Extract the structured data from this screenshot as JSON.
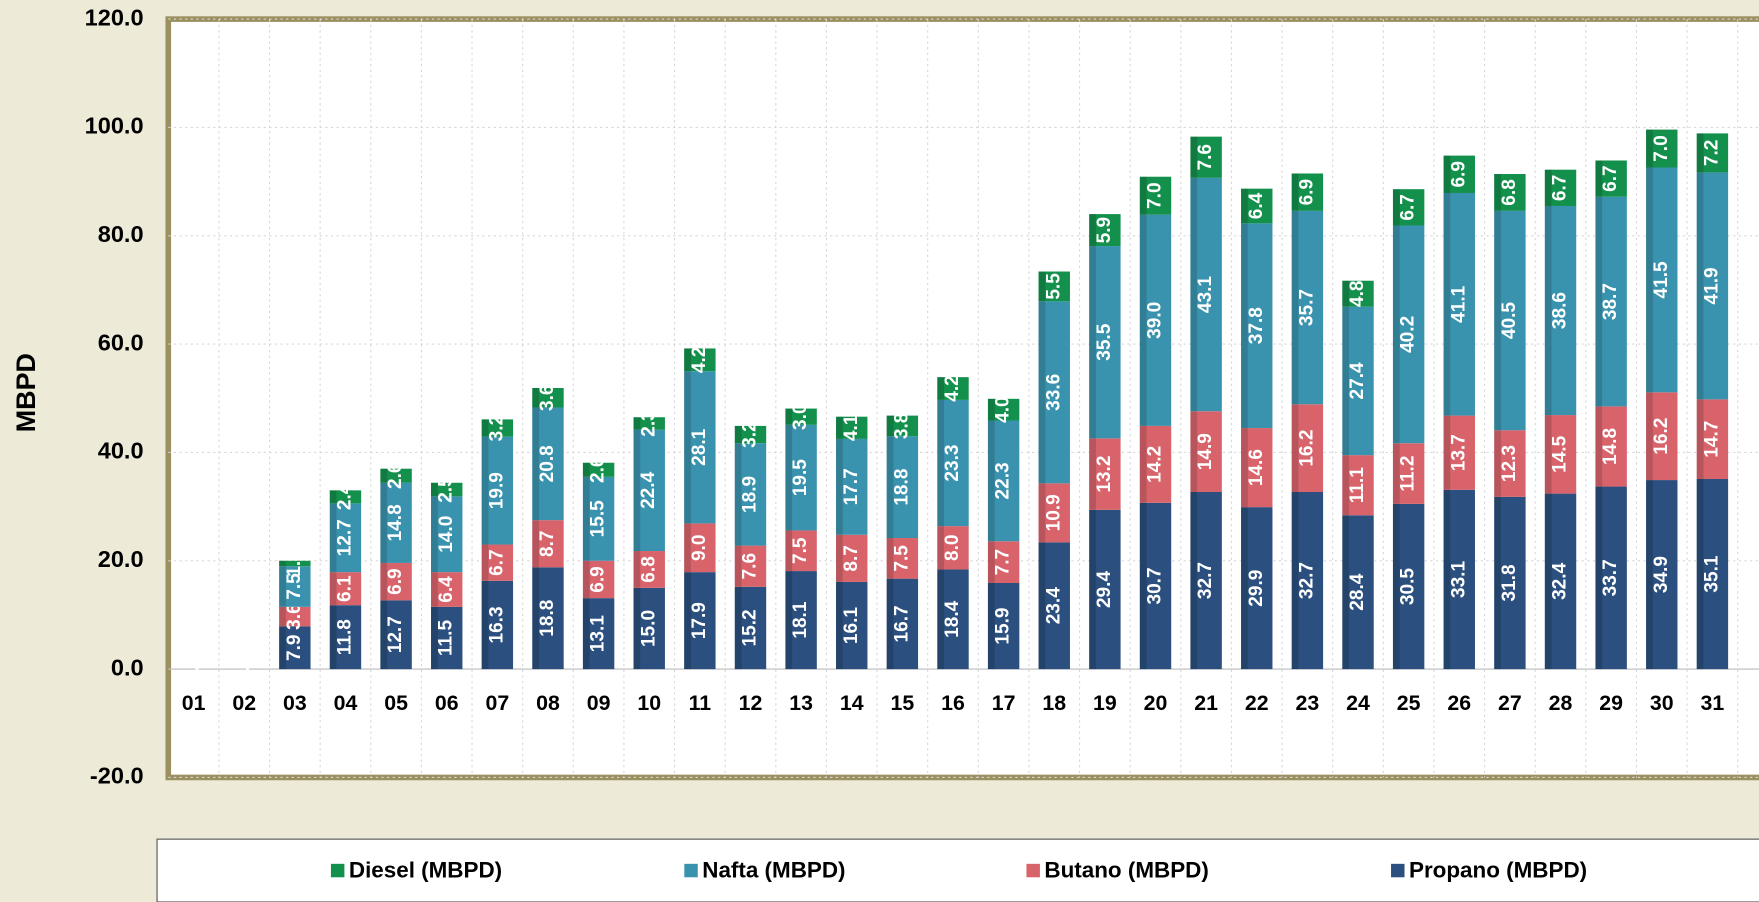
{
  "chart_data": {
    "type": "bar",
    "stacked": true,
    "y_label": "MBPD",
    "categories": [
      "01",
      "02",
      "03",
      "04",
      "05",
      "06",
      "07",
      "08",
      "09",
      "10",
      "11",
      "12",
      "13",
      "14",
      "15",
      "16",
      "17",
      "18",
      "19",
      "20",
      "21",
      "22",
      "23",
      "24",
      "25",
      "26",
      "27",
      "28",
      "29",
      "30",
      "31"
    ],
    "series": [
      {
        "name": "Propano (MBPD)",
        "color": "#2b4f7e",
        "values": [
          0,
          0,
          7.9,
          11.8,
          12.7,
          11.5,
          16.3,
          18.8,
          13.1,
          15.0,
          17.9,
          15.2,
          18.1,
          16.1,
          16.7,
          18.4,
          15.9,
          23.4,
          29.4,
          30.7,
          32.7,
          29.9,
          32.7,
          28.4,
          30.5,
          33.1,
          31.8,
          32.4,
          33.7,
          34.9,
          35.1
        ],
        "value_labels": [
          "0.0",
          "0.0",
          "7.9",
          "11.8",
          "12.7",
          "11.5",
          "16.3",
          "18.8",
          "13.1",
          "15.0",
          "17.9",
          "15.2",
          "18.1",
          "16.1",
          "16.7",
          "18.4",
          "15.9",
          "23.4",
          "29.4",
          "30.7",
          "32.7",
          "29.9",
          "32.7",
          "28.4",
          "30.5",
          "33.1",
          "31.8",
          "32.4",
          "33.7",
          "34.9",
          "35.1"
        ]
      },
      {
        "name": "Butano (MBPD)",
        "color": "#d9636b",
        "values": [
          0,
          0,
          3.6,
          6.1,
          6.9,
          6.4,
          6.7,
          8.7,
          6.9,
          6.8,
          9.0,
          7.6,
          7.5,
          8.7,
          7.5,
          8.0,
          7.7,
          10.9,
          13.2,
          14.2,
          14.9,
          14.6,
          16.2,
          11.1,
          11.2,
          13.7,
          12.3,
          14.5,
          14.8,
          16.2,
          14.7
        ],
        "value_labels": [
          "0.0",
          "0.0",
          "3.6",
          "6.1",
          "6.9",
          "6.4",
          "6.7",
          "8.7",
          "6.9",
          "6.8",
          "9.0",
          "7.6",
          "7.5",
          "8.7",
          "7.5",
          "8.0",
          "7.7",
          "10.9",
          "13.2",
          "14.2",
          "14.9",
          "14.6",
          "16.2",
          "11.1",
          "11.2",
          "13.7",
          "12.3",
          "14.5",
          "14.8",
          "16.2",
          "14.7"
        ]
      },
      {
        "name": "Nafta (MBPD)",
        "color": "#3a93ae",
        "values": [
          0,
          0,
          7.5,
          12.7,
          14.8,
          14.0,
          19.9,
          20.8,
          15.5,
          22.4,
          28.1,
          18.9,
          19.5,
          17.7,
          18.8,
          23.3,
          22.3,
          33.6,
          35.5,
          39.0,
          43.1,
          37.8,
          35.7,
          27.4,
          40.2,
          41.1,
          40.5,
          38.6,
          38.7,
          41.5,
          41.9
        ],
        "value_labels": [
          "0.0",
          "0.0",
          "7.5",
          "12.7",
          "14.8",
          "14.0",
          "19.9",
          "20.8",
          "15.5",
          "22.4",
          "28.1",
          "18.9",
          "19.5",
          "17.7",
          "18.8",
          "23.3",
          "22.3",
          "33.6",
          "35.5",
          "39.0",
          "43.1",
          "37.8",
          "35.7",
          "27.4",
          "40.2",
          "41.1",
          "40.5",
          "38.6",
          "38.7",
          "41.5",
          "41.9"
        ]
      },
      {
        "name": "Diesel (MBPD)",
        "color": "#13904c",
        "values": [
          0,
          0,
          1.0,
          2.4,
          2.6,
          2.5,
          3.2,
          3.6,
          2.6,
          2.3,
          4.2,
          3.2,
          3.0,
          4.1,
          3.8,
          4.2,
          4.0,
          5.5,
          5.9,
          7.0,
          7.6,
          6.4,
          6.9,
          4.8,
          6.7,
          6.9,
          6.8,
          6.7,
          6.7,
          7.0,
          7.2
        ],
        "value_labels": [
          "0.0",
          "0.0",
          "1.0",
          "2.4",
          "2.6",
          "2.5",
          "3.2",
          "3.6",
          "2.6",
          "2.3",
          "4.2",
          "3.2",
          "3.0",
          "4.1",
          "3.8",
          "4.2",
          "4.0",
          "5.5",
          "5.9",
          "7.0",
          "7.6",
          "6.4",
          "6.9",
          "4.8",
          "6.7",
          "6.9",
          "6.8",
          "6.7",
          "6.7",
          "7.0",
          "7.2"
        ]
      }
    ],
    "ylim": [
      -20,
      120
    ],
    "yticks": [
      {
        "value": -20,
        "label": "-20.0"
      },
      {
        "value": 0,
        "label": "0.0"
      },
      {
        "value": 20,
        "label": "20.0"
      },
      {
        "value": 40,
        "label": "40.0"
      },
      {
        "value": 60,
        "label": "60.0"
      },
      {
        "value": 80,
        "label": "80.0"
      },
      {
        "value": 100,
        "label": "100.0"
      },
      {
        "value": 120,
        "label": "120.0"
      }
    ],
    "grid": true,
    "legend": "bottom"
  }
}
